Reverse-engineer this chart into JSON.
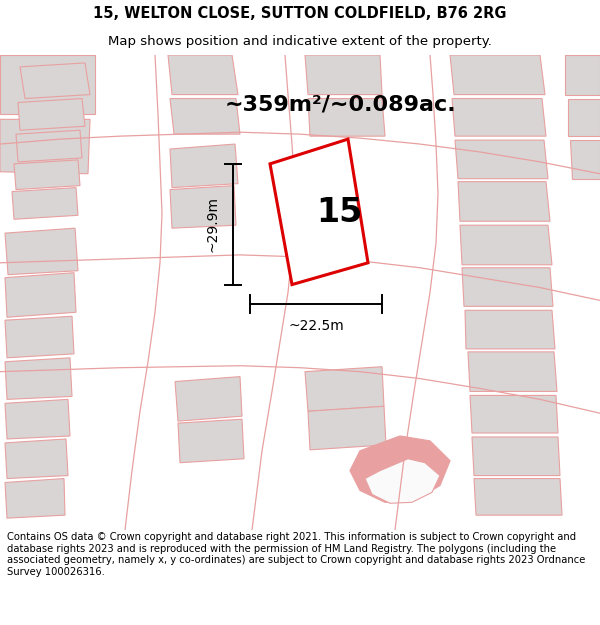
{
  "title": "15, WELTON CLOSE, SUTTON COLDFIELD, B76 2RG",
  "subtitle": "Map shows position and indicative extent of the property.",
  "area_label": "~359m²/~0.089ac.",
  "property_number": "15",
  "dim_width": "~22.5m",
  "dim_height": "~29.9m",
  "footer": "Contains OS data © Crown copyright and database right 2021. This information is subject to Crown copyright and database rights 2023 and is reproduced with the permission of HM Land Registry. The polygons (including the associated geometry, namely x, y co-ordinates) are subject to Crown copyright and database rights 2023 Ordnance Survey 100026316.",
  "map_bg": "#f7f4f4",
  "red_plot_color": "#dd0000",
  "light_red": "#e8a0a0",
  "gray_building": "#d9d5d5",
  "gray_road": "#e8e4e4",
  "title_fontsize": 10.5,
  "subtitle_fontsize": 9.5,
  "footer_fontsize": 7.2,
  "area_label_fontsize": 16,
  "number_fontsize": 24
}
